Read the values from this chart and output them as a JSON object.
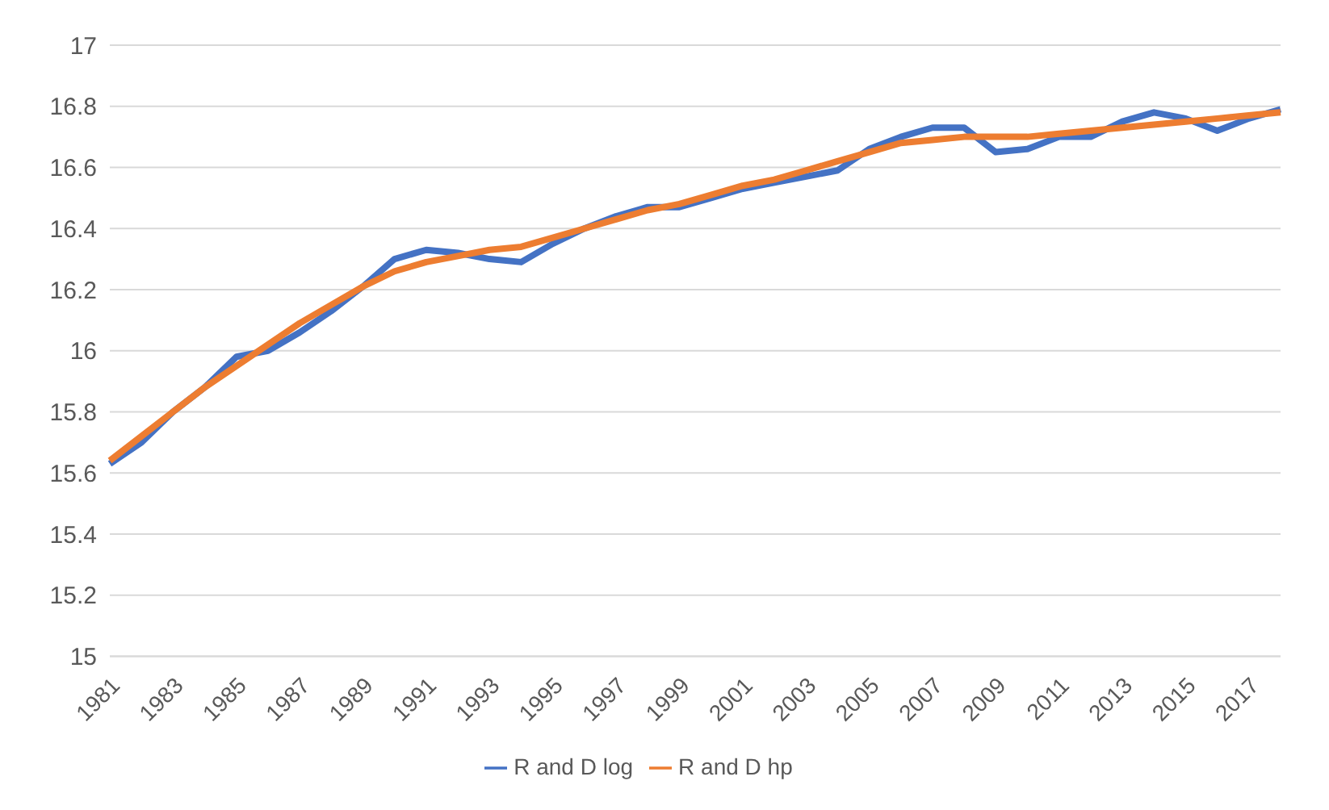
{
  "chart_data": {
    "type": "line",
    "categories": [
      "1981",
      null,
      "1983",
      null,
      "1985",
      null,
      "1987",
      null,
      "1989",
      null,
      "1991",
      null,
      "1993",
      null,
      "1995",
      null,
      "1997",
      null,
      "1999",
      null,
      "2001",
      null,
      "2003",
      null,
      "2005",
      null,
      "2007",
      null,
      "2009",
      null,
      "2011",
      null,
      "2013",
      null,
      "2015",
      null,
      "2017",
      null
    ],
    "series": [
      {
        "name": "R and D log",
        "color": "#4472c4",
        "values": [
          15.63,
          15.7,
          15.8,
          15.88,
          15.98,
          16.0,
          16.06,
          16.13,
          16.21,
          16.3,
          16.33,
          16.32,
          16.3,
          16.29,
          16.35,
          16.4,
          16.44,
          16.47,
          16.47,
          16.5,
          16.53,
          16.55,
          16.57,
          16.59,
          16.66,
          16.7,
          16.73,
          16.73,
          16.65,
          16.66,
          16.7,
          16.7,
          16.75,
          16.78,
          16.76,
          16.72,
          16.76,
          16.79
        ]
      },
      {
        "name": "R and D hp",
        "color": "#ed7d31",
        "values": [
          15.64,
          15.72,
          15.8,
          15.88,
          15.95,
          16.02,
          16.09,
          16.15,
          16.21,
          16.26,
          16.29,
          16.31,
          16.33,
          16.34,
          16.37,
          16.4,
          16.43,
          16.46,
          16.48,
          16.51,
          16.54,
          16.56,
          16.59,
          16.62,
          16.65,
          16.68,
          16.69,
          16.7,
          16.7,
          16.7,
          16.71,
          16.72,
          16.73,
          16.74,
          16.75,
          16.76,
          16.77,
          16.78
        ]
      }
    ],
    "ylim": [
      15,
      17
    ],
    "yticks": [
      15,
      15.2,
      15.4,
      15.6,
      15.8,
      16,
      16.2,
      16.4,
      16.6,
      16.8,
      17
    ],
    "grid": "y",
    "legend": "bottom",
    "marker": "none",
    "line_style": "solid"
  }
}
